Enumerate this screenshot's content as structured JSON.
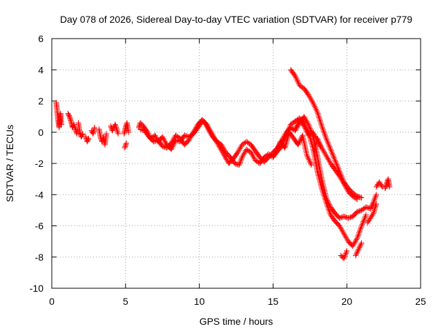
{
  "chart_data": {
    "type": "scatter",
    "title": "Day 078 of 2026, Sidereal Day-to-day VTEC variation (SDTVAR) for receiver p779",
    "xlabel": "GPS time / hours",
    "ylabel": "SDTVAR / TECUs",
    "xlim": [
      0,
      25
    ],
    "ylim": [
      -10,
      6
    ],
    "grid": true,
    "marker": "+",
    "color": "#ff0000",
    "x_ticks": [
      0,
      5,
      10,
      15,
      20,
      25
    ],
    "x_tick_labels": [
      "0",
      "5",
      "10",
      "15",
      "20",
      "25"
    ],
    "y_ticks": [
      -10,
      -8,
      -6,
      -4,
      -2,
      0,
      2,
      4,
      6
    ],
    "y_tick_labels": [
      "-10",
      "-8",
      "-6",
      "-4",
      "-2",
      "0",
      "2",
      "4",
      "6"
    ],
    "series": [
      {
        "name": "SDTVAR",
        "segments": [
          [
            [
              0.3,
              1.9
            ],
            [
              0.35,
              1.5
            ],
            [
              0.4,
              1.0
            ],
            [
              0.45,
              0.6
            ],
            [
              0.5,
              0.3
            ],
            [
              0.55,
              0.8
            ],
            [
              0.6,
              1.2
            ],
            [
              0.65,
              0.5
            ]
          ],
          [
            [
              1.1,
              1.2
            ],
            [
              1.2,
              1.0
            ],
            [
              1.3,
              0.7
            ],
            [
              1.4,
              0.3
            ],
            [
              1.5,
              0.5
            ],
            [
              1.6,
              0.2
            ],
            [
              1.7,
              -0.1
            ]
          ],
          [
            [
              1.8,
              0.6
            ],
            [
              1.9,
              0.0
            ],
            [
              2.0,
              -0.3
            ],
            [
              2.1,
              -0.1
            ]
          ],
          [
            [
              2.3,
              -0.3
            ],
            [
              2.4,
              -0.6
            ],
            [
              2.5,
              -0.4
            ]
          ],
          [
            [
              2.7,
              0.1
            ],
            [
              2.8,
              -0.1
            ],
            [
              2.9,
              0.3
            ]
          ],
          [
            [
              3.2,
              0.2
            ],
            [
              3.3,
              -0.3
            ],
            [
              3.4,
              -0.6
            ],
            [
              3.5,
              -0.3
            ],
            [
              3.6,
              -0.8
            ],
            [
              3.7,
              -0.1
            ]
          ],
          [
            [
              4.0,
              0.4
            ],
            [
              4.1,
              0.1
            ],
            [
              4.3,
              0.5
            ],
            [
              4.5,
              -0.1
            ]
          ],
          [
            [
              4.9,
              -0.1
            ],
            [
              5.0,
              0.3
            ],
            [
              5.1,
              0.6
            ],
            [
              5.2,
              0.0
            ]
          ],
          [
            [
              4.95,
              -1.0
            ],
            [
              5.05,
              -0.7
            ]
          ],
          [
            [
              5.9,
              0.3
            ],
            [
              6.0,
              0.6
            ],
            [
              6.2,
              0.4
            ],
            [
              6.5,
              0.0
            ],
            [
              6.7,
              -0.4
            ],
            [
              7.0,
              -0.2
            ],
            [
              7.2,
              -0.6
            ],
            [
              7.5,
              -0.3
            ],
            [
              7.8,
              -0.8
            ],
            [
              8.1,
              -1.1
            ],
            [
              8.4,
              -0.5
            ],
            [
              8.7,
              -0.6
            ],
            [
              9.0,
              -0.2
            ],
            [
              9.3,
              -0.3
            ],
            [
              9.6,
              -0.1
            ],
            [
              9.9,
              0.3
            ],
            [
              10.2,
              0.7
            ],
            [
              10.4,
              0.6
            ],
            [
              10.6,
              0.2
            ],
            [
              10.9,
              -0.3
            ],
            [
              11.2,
              -0.6
            ],
            [
              11.5,
              -0.8
            ],
            [
              11.8,
              -1.3
            ],
            [
              12.1,
              -1.6
            ],
            [
              12.4,
              -2.0
            ],
            [
              12.7,
              -2.1
            ],
            [
              12.9,
              -1.6
            ],
            [
              13.2,
              -1.1
            ],
            [
              13.5,
              -1.3
            ],
            [
              13.8,
              -1.8
            ],
            [
              14.1,
              -2.0
            ],
            [
              14.4,
              -1.6
            ],
            [
              14.7,
              -1.4
            ],
            [
              15.0,
              -1.6
            ],
            [
              15.3,
              -1.2
            ],
            [
              15.6,
              -0.9
            ],
            [
              15.9,
              -0.2
            ],
            [
              16.2,
              0.5
            ],
            [
              16.5,
              0.7
            ],
            [
              16.8,
              0.9
            ],
            [
              17.1,
              0.6
            ],
            [
              17.4,
              0.0
            ],
            [
              17.7,
              -1.0
            ],
            [
              18.0,
              -2.5
            ],
            [
              18.3,
              -3.6
            ],
            [
              18.6,
              -4.5
            ],
            [
              18.9,
              -5.3
            ],
            [
              19.2,
              -5.7
            ],
            [
              19.5,
              -6.0
            ],
            [
              19.8,
              -6.5
            ],
            [
              20.1,
              -7.0
            ],
            [
              20.4,
              -7.3
            ],
            [
              20.7,
              -6.8
            ],
            [
              21.0,
              -6.0
            ],
            [
              21.3,
              -5.3
            ]
          ],
          [
            [
              6.0,
              0.2
            ],
            [
              6.3,
              0.1
            ],
            [
              6.6,
              -0.3
            ],
            [
              6.9,
              -0.6
            ],
            [
              7.2,
              -0.5
            ],
            [
              7.5,
              -0.9
            ],
            [
              7.8,
              -1.0
            ],
            [
              8.1,
              -0.7
            ],
            [
              8.4,
              -0.2
            ],
            [
              8.7,
              -0.4
            ],
            [
              9.0,
              -0.8
            ],
            [
              9.3,
              -0.5
            ],
            [
              9.6,
              0.0
            ],
            [
              9.9,
              0.5
            ],
            [
              10.2,
              0.8
            ],
            [
              10.5,
              0.5
            ],
            [
              10.8,
              0.0
            ],
            [
              11.1,
              -0.5
            ],
            [
              11.4,
              -1.0
            ],
            [
              11.7,
              -1.5
            ],
            [
              12.0,
              -2.0
            ],
            [
              12.3,
              -1.7
            ],
            [
              12.6,
              -1.3
            ],
            [
              12.9,
              -0.8
            ],
            [
              13.2,
              -0.6
            ],
            [
              13.5,
              -0.8
            ],
            [
              13.8,
              -1.2
            ],
            [
              14.1,
              -1.6
            ],
            [
              14.4,
              -1.9
            ],
            [
              14.7,
              -1.6
            ],
            [
              15.0,
              -1.3
            ],
            [
              15.3,
              -1.0
            ],
            [
              15.6,
              -0.5
            ],
            [
              15.9,
              0.0
            ],
            [
              16.2,
              0.3
            ],
            [
              16.5,
              0.1
            ],
            [
              16.8,
              0.6
            ],
            [
              17.1,
              1.0
            ],
            [
              17.4,
              0.5
            ],
            [
              17.7,
              -0.2
            ],
            [
              18.0,
              -1.5
            ],
            [
              18.3,
              -3.0
            ],
            [
              18.6,
              -4.2
            ],
            [
              18.9,
              -4.8
            ],
            [
              19.2,
              -5.2
            ],
            [
              19.5,
              -5.5
            ],
            [
              19.8,
              -5.4
            ],
            [
              20.1,
              -5.5
            ],
            [
              20.4,
              -5.4
            ],
            [
              20.7,
              -5.1
            ],
            [
              21.0,
              -5.0
            ],
            [
              21.3,
              -4.8
            ],
            [
              21.6,
              -4.9
            ],
            [
              21.8,
              -4.5
            ],
            [
              22.0,
              -4.0
            ]
          ],
          [
            [
              16.2,
              4.0
            ],
            [
              16.5,
              3.6
            ],
            [
              16.8,
              3.0
            ],
            [
              17.1,
              2.8
            ],
            [
              17.4,
              2.4
            ],
            [
              17.7,
              1.9
            ],
            [
              18.0,
              1.3
            ],
            [
              18.3,
              0.4
            ],
            [
              18.6,
              -0.4
            ],
            [
              18.9,
              -1.1
            ],
            [
              19.2,
              -1.8
            ],
            [
              19.5,
              -2.5
            ],
            [
              19.8,
              -3.2
            ],
            [
              20.1,
              -3.6
            ],
            [
              20.4,
              -3.9
            ],
            [
              20.7,
              -4.1
            ],
            [
              21.0,
              -4.2
            ]
          ],
          [
            [
              16.5,
              0.2
            ],
            [
              16.8,
              0.8
            ],
            [
              17.1,
              0.4
            ],
            [
              17.4,
              -0.2
            ],
            [
              17.7,
              0.0
            ],
            [
              18.0,
              -0.5
            ],
            [
              18.3,
              -1.0
            ],
            [
              18.6,
              -1.5
            ],
            [
              18.9,
              -2.0
            ],
            [
              19.2,
              -2.4
            ],
            [
              19.5,
              -2.8
            ],
            [
              19.8,
              -3.3
            ],
            [
              20.1,
              -3.8
            ],
            [
              20.4,
              -4.1
            ],
            [
              20.7,
              -4.3
            ]
          ],
          [
            [
              15.2,
              -1.3
            ],
            [
              15.5,
              -0.6
            ],
            [
              15.8,
              -1.0
            ],
            [
              16.1,
              0.0
            ],
            [
              16.4,
              -0.4
            ],
            [
              16.7,
              -0.8
            ],
            [
              17.0,
              -0.2
            ],
            [
              17.3,
              -1.5
            ],
            [
              17.6,
              -2.1
            ]
          ],
          [
            [
              17.8,
              -1.2
            ],
            [
              18.0,
              -0.4
            ],
            [
              18.2,
              -0.9
            ]
          ],
          [
            [
              19.6,
              -7.9
            ],
            [
              19.8,
              -8.1
            ],
            [
              20.0,
              -7.6
            ]
          ],
          [
            [
              20.6,
              -7.9
            ],
            [
              20.8,
              -7.5
            ],
            [
              21.0,
              -7.1
            ]
          ],
          [
            [
              21.4,
              -5.8
            ],
            [
              21.6,
              -5.5
            ],
            [
              21.8,
              -5.2
            ],
            [
              22.0,
              -4.6
            ]
          ],
          [
            [
              22.0,
              -3.5
            ],
            [
              22.2,
              -3.2
            ],
            [
              22.4,
              -3.5
            ]
          ],
          [
            [
              22.6,
              -3.6
            ],
            [
              22.7,
              -3.3
            ],
            [
              22.8,
              -3.0
            ],
            [
              22.9,
              -3.5
            ]
          ]
        ]
      }
    ]
  }
}
